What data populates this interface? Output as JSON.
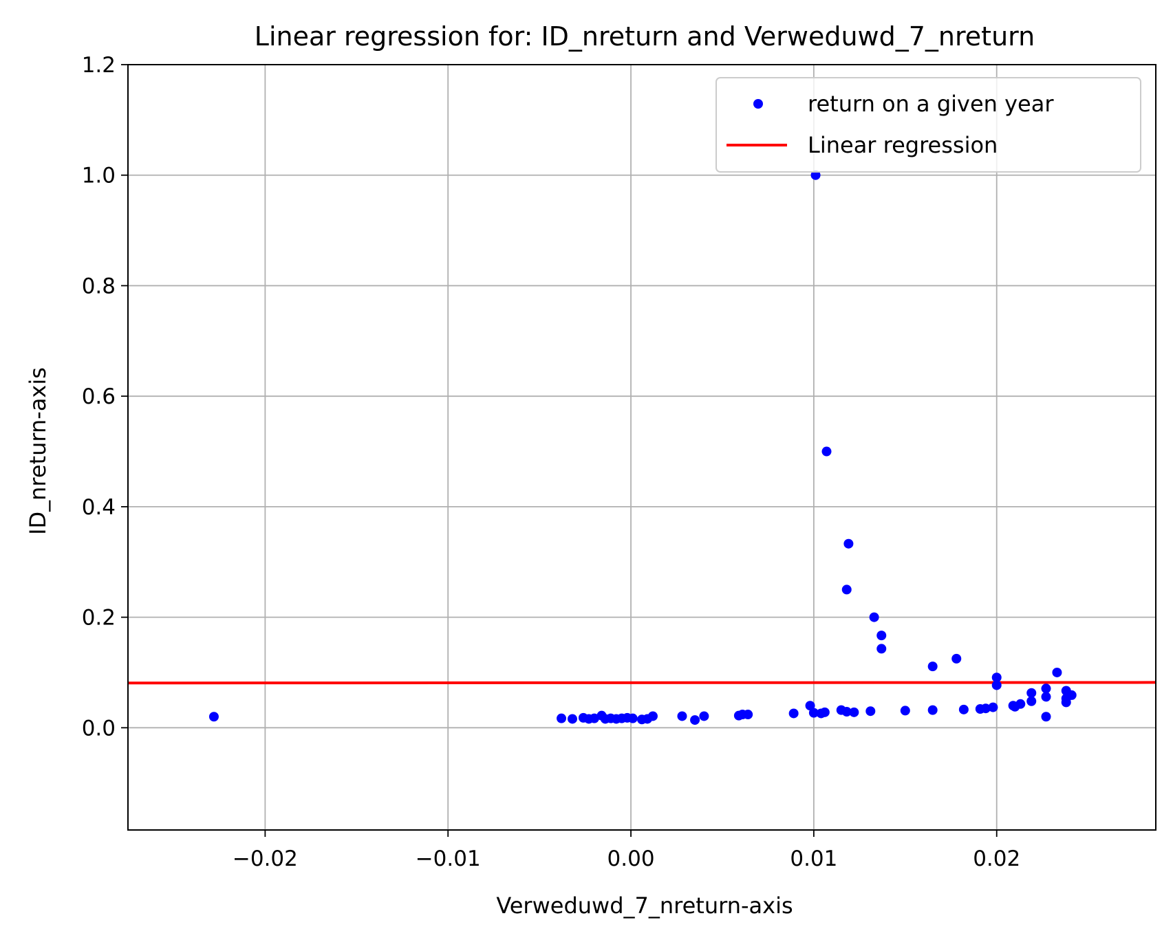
{
  "chart_data": {
    "type": "scatter",
    "title": "Linear regression for: ID_nreturn and Verweduwd_7_nreturn",
    "xlabel": "Verweduwd_7_nreturn-axis",
    "ylabel": "ID_nreturn-axis",
    "xlim": [
      -0.0275,
      0.0287
    ],
    "ylim": [
      -0.185,
      1.2
    ],
    "xticks": [
      -0.02,
      -0.01,
      0.0,
      0.01,
      0.02
    ],
    "xtick_labels": [
      "−0.02",
      "−0.01",
      "0.00",
      "0.01",
      "0.02"
    ],
    "yticks": [
      0.0,
      0.2,
      0.4,
      0.6,
      0.8,
      1.0,
      1.2
    ],
    "ytick_labels": [
      "0.0",
      "0.2",
      "0.4",
      "0.6",
      "0.8",
      "1.0",
      "1.2"
    ],
    "grid": true,
    "legend_position": "top-right",
    "colors": {
      "scatter": "#0000ff",
      "line": "#ff0000",
      "grid": "#b0b0b0"
    },
    "series": [
      {
        "name": "return on a given year",
        "kind": "scatter",
        "points": [
          [
            -0.0228,
            0.02
          ],
          [
            -0.0038,
            0.017
          ],
          [
            -0.0032,
            0.016
          ],
          [
            -0.0026,
            0.018
          ],
          [
            -0.0023,
            0.016
          ],
          [
            -0.002,
            0.017
          ],
          [
            -0.0016,
            0.022
          ],
          [
            -0.0014,
            0.016
          ],
          [
            -0.0011,
            0.017
          ],
          [
            -0.0008,
            0.016
          ],
          [
            -0.0005,
            0.017
          ],
          [
            -0.0002,
            0.018
          ],
          [
            0.0001,
            0.017
          ],
          [
            0.0006,
            0.015
          ],
          [
            0.0009,
            0.016
          ],
          [
            0.0012,
            0.021
          ],
          [
            0.0028,
            0.021
          ],
          [
            0.0035,
            0.014
          ],
          [
            0.004,
            0.021
          ],
          [
            0.0059,
            0.022
          ],
          [
            0.0061,
            0.024
          ],
          [
            0.0064,
            0.024
          ],
          [
            0.0089,
            0.026
          ],
          [
            0.0098,
            0.04
          ],
          [
            0.01,
            0.027
          ],
          [
            0.0104,
            0.026
          ],
          [
            0.0106,
            0.028
          ],
          [
            0.0101,
            1.0
          ],
          [
            0.0107,
            0.5
          ],
          [
            0.0115,
            0.032
          ],
          [
            0.0118,
            0.029
          ],
          [
            0.0122,
            0.028
          ],
          [
            0.0131,
            0.03
          ],
          [
            0.0119,
            0.333
          ],
          [
            0.0118,
            0.25
          ],
          [
            0.0133,
            0.2
          ],
          [
            0.0137,
            0.167
          ],
          [
            0.0137,
            0.143
          ],
          [
            0.015,
            0.031
          ],
          [
            0.0165,
            0.111
          ],
          [
            0.0165,
            0.032
          ],
          [
            0.0178,
            0.125
          ],
          [
            0.0182,
            0.033
          ],
          [
            0.0191,
            0.034
          ],
          [
            0.0194,
            0.035
          ],
          [
            0.0198,
            0.037
          ],
          [
            0.02,
            0.091
          ],
          [
            0.02,
            0.077
          ],
          [
            0.0209,
            0.04
          ],
          [
            0.021,
            0.038
          ],
          [
            0.0213,
            0.043
          ],
          [
            0.0219,
            0.063
          ],
          [
            0.0219,
            0.048
          ],
          [
            0.0227,
            0.071
          ],
          [
            0.0227,
            0.056
          ],
          [
            0.0227,
            0.02
          ],
          [
            0.0233,
            0.1
          ],
          [
            0.0238,
            0.067
          ],
          [
            0.0238,
            0.053
          ],
          [
            0.0238,
            0.046
          ],
          [
            0.0241,
            0.059
          ]
        ]
      },
      {
        "name": "Linear regression",
        "kind": "line",
        "x": [
          -0.0275,
          0.0287
        ],
        "y": [
          0.081,
          0.082
        ]
      }
    ]
  }
}
